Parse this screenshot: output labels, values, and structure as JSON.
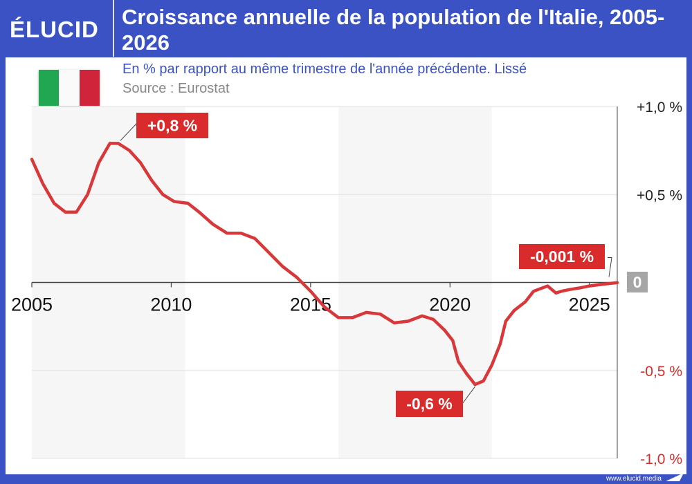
{
  "header": {
    "logo": "ÉLUCID",
    "title": "Croissance annuelle de la population de l'Italie, 2005-2026"
  },
  "subtitle": "En % par rapport au même trimestre de l'année précédente. Lissé",
  "source": "Source : Eurostat",
  "flag_icon": "italy-flag",
  "footer": {
    "url": "www.elucid.media"
  },
  "colors": {
    "brand": "#3a52c4",
    "line": "#d9383a",
    "label_bg": "#d92b2b",
    "zero_label_bg": "#a6a6a6",
    "shade": "#f6f6f6"
  },
  "chart_data": {
    "type": "line",
    "x_unit": "year",
    "ylim": [
      -1.0,
      1.0
    ],
    "xlim": [
      2005,
      2026
    ],
    "xticks": [
      "2005",
      "2010",
      "2015",
      "2020",
      "2025"
    ],
    "yticks": [
      "+1,0 %",
      "+0,5 %",
      "0",
      "-0,5 %",
      "-1,0 %"
    ],
    "ytick_values": [
      1.0,
      0.5,
      0,
      -0.5,
      -1.0
    ],
    "shaded_periods": [
      [
        2005,
        2010.5
      ],
      [
        2016,
        2021.5
      ]
    ],
    "grid": true,
    "y_axis_position": "right",
    "series": [
      {
        "x": [
          2005.0,
          2005.4,
          2005.8,
          2006.2,
          2006.6,
          2007.0,
          2007.4,
          2007.8,
          2008.1,
          2008.5,
          2008.9,
          2009.3,
          2009.7,
          2010.1,
          2010.6,
          2011.0,
          2011.5,
          2012.0,
          2012.5,
          2013.0,
          2013.5,
          2014.0,
          2014.5,
          2015.0,
          2015.5,
          2016.0,
          2016.5,
          2017.0,
          2017.5,
          2018.0,
          2018.5,
          2019.0,
          2019.4,
          2019.8,
          2020.1,
          2020.3,
          2020.6,
          2020.9,
          2021.2,
          2021.5,
          2021.8,
          2022.0,
          2022.3,
          2022.7,
          2023.0,
          2023.5,
          2023.8,
          2024.0,
          2024.3,
          2024.7,
          2025.0,
          2025.5,
          2026.0
        ],
        "values": [
          0.7,
          0.56,
          0.45,
          0.4,
          0.4,
          0.5,
          0.68,
          0.79,
          0.79,
          0.75,
          0.68,
          0.58,
          0.5,
          0.46,
          0.45,
          0.4,
          0.33,
          0.28,
          0.28,
          0.25,
          0.17,
          0.09,
          0.03,
          -0.05,
          -0.14,
          -0.2,
          -0.2,
          -0.17,
          -0.18,
          -0.23,
          -0.22,
          -0.19,
          -0.21,
          -0.27,
          -0.33,
          -0.45,
          -0.52,
          -0.58,
          -0.56,
          -0.47,
          -0.35,
          -0.22,
          -0.16,
          -0.11,
          -0.05,
          -0.02,
          -0.06,
          -0.05,
          -0.04,
          -0.03,
          -0.02,
          -0.01,
          -0.001
        ]
      }
    ],
    "annotations": [
      {
        "text": "+0,8 %",
        "x": 2008.1,
        "y": 0.79
      },
      {
        "text": "-0,6 %",
        "x": 2020.9,
        "y": -0.58
      },
      {
        "text": "-0,001 %",
        "x": 2026.0,
        "y": -0.001
      },
      {
        "text": "0",
        "x": 2026.0,
        "y": 0
      }
    ]
  }
}
